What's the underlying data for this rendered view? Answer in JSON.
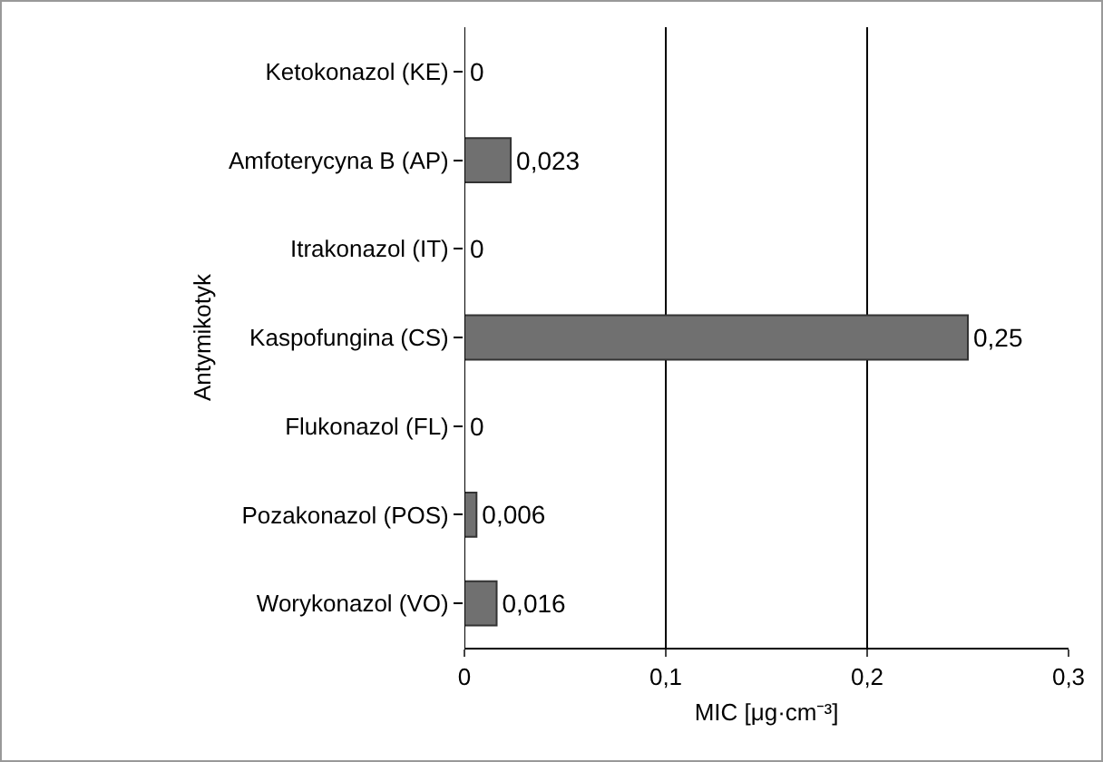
{
  "chart_data": {
    "type": "bar",
    "orientation": "horizontal",
    "categories": [
      "Ketokonazol (KE)",
      "Amfoterycyna B (AP)",
      "Itrakonazol (IT)",
      "Kaspofungina (CS)",
      "Flukonazol (FL)",
      "Pozakonazol (POS)",
      "Worykonazol (VO)"
    ],
    "values": [
      0,
      0.023,
      0,
      0.25,
      0,
      0.006,
      0.016
    ],
    "value_labels": [
      "0",
      "0,023",
      "0",
      "0,25",
      "0",
      "0,006",
      "0,016"
    ],
    "color": "#707070",
    "xlim": [
      0,
      0.3
    ],
    "xticks": [
      0,
      {
        "value": 0.1,
        "label": "0,1"
      },
      {
        "value": 0.2,
        "label": "0,2"
      },
      {
        "value": 0.3,
        "label": "0,3"
      }
    ],
    "xlabel": "MIC [μg·cm⁻³]",
    "ylabel": "Antymikotyk",
    "grid": "x"
  }
}
